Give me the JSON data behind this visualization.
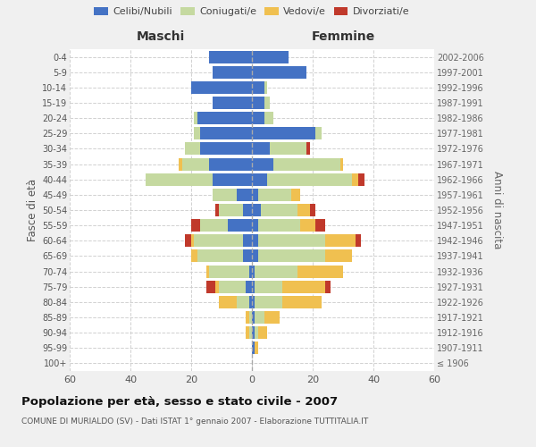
{
  "age_groups": [
    "100+",
    "95-99",
    "90-94",
    "85-89",
    "80-84",
    "75-79",
    "70-74",
    "65-69",
    "60-64",
    "55-59",
    "50-54",
    "45-49",
    "40-44",
    "35-39",
    "30-34",
    "25-29",
    "20-24",
    "15-19",
    "10-14",
    "5-9",
    "0-4"
  ],
  "birth_years": [
    "≤ 1906",
    "1907-1911",
    "1912-1916",
    "1917-1921",
    "1922-1926",
    "1927-1931",
    "1932-1936",
    "1937-1941",
    "1942-1946",
    "1947-1951",
    "1952-1956",
    "1957-1961",
    "1962-1966",
    "1967-1971",
    "1972-1976",
    "1977-1981",
    "1982-1986",
    "1987-1991",
    "1992-1996",
    "1997-2001",
    "2002-2006"
  ],
  "colors": {
    "celibi": "#4472C4",
    "coniugati": "#c5d9a0",
    "vedovi": "#f0c050",
    "divorziati": "#c0392b"
  },
  "maschi": {
    "celibi": [
      0,
      0,
      0,
      0,
      1,
      2,
      1,
      3,
      3,
      8,
      3,
      5,
      13,
      14,
      17,
      17,
      18,
      13,
      20,
      13,
      14
    ],
    "coniugati": [
      0,
      0,
      1,
      1,
      4,
      9,
      13,
      15,
      16,
      9,
      8,
      8,
      22,
      9,
      5,
      2,
      1,
      0,
      0,
      0,
      0
    ],
    "vedovi": [
      0,
      0,
      1,
      1,
      6,
      1,
      1,
      2,
      1,
      0,
      0,
      0,
      0,
      1,
      0,
      0,
      0,
      0,
      0,
      0,
      0
    ],
    "divorziati": [
      0,
      0,
      0,
      0,
      0,
      3,
      0,
      0,
      2,
      3,
      1,
      0,
      0,
      0,
      0,
      0,
      0,
      0,
      0,
      0,
      0
    ]
  },
  "femmine": {
    "celibi": [
      0,
      1,
      1,
      1,
      1,
      1,
      1,
      2,
      2,
      2,
      3,
      2,
      5,
      7,
      6,
      21,
      4,
      4,
      4,
      18,
      12
    ],
    "coniugati": [
      0,
      0,
      1,
      3,
      9,
      9,
      14,
      22,
      22,
      14,
      12,
      11,
      28,
      22,
      12,
      2,
      3,
      2,
      1,
      0,
      0
    ],
    "vedovi": [
      0,
      1,
      3,
      5,
      13,
      14,
      15,
      9,
      10,
      5,
      4,
      3,
      2,
      1,
      0,
      0,
      0,
      0,
      0,
      0,
      0
    ],
    "divorziati": [
      0,
      0,
      0,
      0,
      0,
      2,
      0,
      0,
      2,
      3,
      2,
      0,
      2,
      0,
      1,
      0,
      0,
      0,
      0,
      0,
      0
    ]
  },
  "xlim": 60,
  "title": "Popolazione per età, sesso e stato civile - 2007",
  "subtitle": "COMUNE DI MURIALDO (SV) - Dati ISTAT 1° gennaio 2007 - Elaborazione TUTTITALIA.IT",
  "ylabel_left": "Fasce di età",
  "ylabel_right": "Anni di nascita",
  "xlabel_maschi": "Maschi",
  "xlabel_femmine": "Femmine",
  "legend_labels": [
    "Celibi/Nubili",
    "Coniugati/e",
    "Vedovi/e",
    "Divorziati/e"
  ],
  "background_color": "#f0f0f0",
  "plot_background": "#ffffff",
  "grid_color": "#cccccc"
}
